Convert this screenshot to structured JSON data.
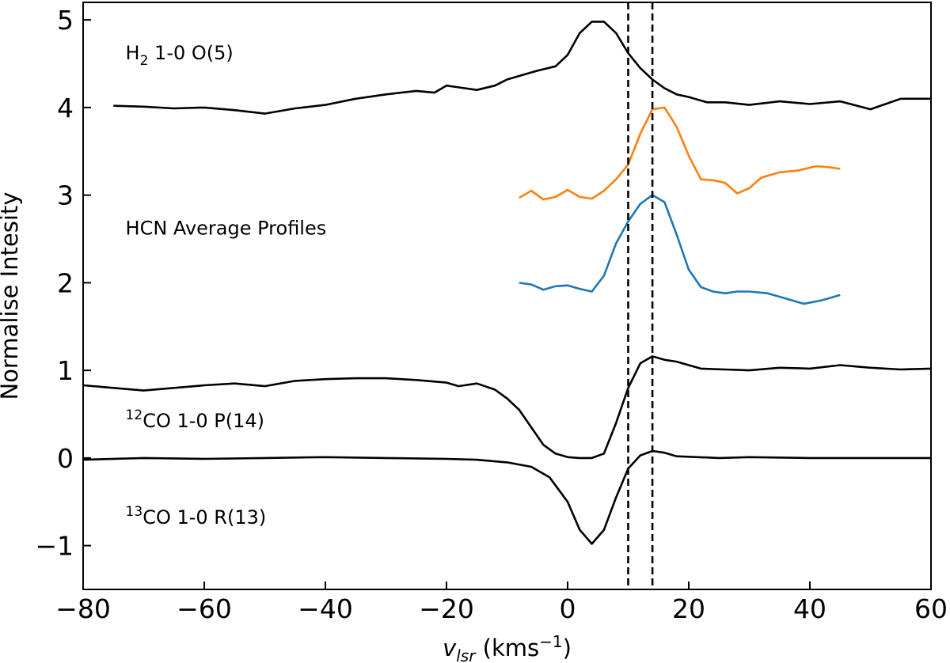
{
  "chart_data": {
    "type": "line",
    "xlabel": {
      "main": "v",
      "sub": "lsr",
      "unit_pre": " (kms",
      "unit_sup": "−1",
      "unit_post": ")"
    },
    "ylabel": "Normalise Intesity",
    "xlim": [
      -80,
      60
    ],
    "ylim": [
      -1.5,
      5.2
    ],
    "xticks": [
      -80,
      -60,
      -40,
      -20,
      0,
      20,
      40,
      60
    ],
    "yticks": [
      -1,
      0,
      1,
      2,
      3,
      4,
      5
    ],
    "xtick_labels": [
      "−80",
      "−60",
      "−40",
      "−20",
      "0",
      "20",
      "40",
      "60"
    ],
    "ytick_labels": [
      "−1",
      "0",
      "1",
      "2",
      "3",
      "4",
      "5"
    ],
    "vlines": [
      10,
      14
    ],
    "annotations": {
      "h2": {
        "main": "H",
        "sub": "2",
        "rest": " 1-0 O(5)",
        "x": -73,
        "y": 4.55
      },
      "hcn": {
        "text": "HCN Average Profiles",
        "x": -73,
        "y": 2.55
      },
      "co12": {
        "sup": "12",
        "rest": "CO 1-0 P(14)",
        "x": -73,
        "y": 0.35
      },
      "co13": {
        "sup": "13",
        "rest": "CO 1-0 R(13)",
        "x": -73,
        "y": -0.75
      }
    },
    "series": [
      {
        "name": "H2 1-0 O(5)",
        "color": "#000000",
        "x": [
          -75,
          -70,
          -65,
          -60,
          -55,
          -50,
          -45,
          -40,
          -35,
          -30,
          -25,
          -22,
          -20,
          -17,
          -15,
          -12,
          -10,
          -7,
          -5,
          -2,
          0,
          2,
          4,
          6,
          8,
          10,
          12,
          14,
          16,
          18,
          20,
          23,
          26,
          30,
          35,
          40,
          45,
          50,
          55,
          60
        ],
        "y": [
          4.02,
          4.01,
          3.99,
          4.0,
          3.97,
          3.93,
          3.99,
          4.03,
          4.1,
          4.15,
          4.19,
          4.17,
          4.25,
          4.22,
          4.2,
          4.25,
          4.32,
          4.38,
          4.42,
          4.47,
          4.6,
          4.85,
          4.98,
          4.98,
          4.85,
          4.62,
          4.45,
          4.32,
          4.22,
          4.15,
          4.12,
          4.06,
          4.06,
          4.03,
          4.07,
          4.04,
          4.07,
          3.98,
          4.1,
          4.1
        ]
      },
      {
        "name": "HCN profile (orange)",
        "color": "#ff7f0e",
        "x": [
          -8,
          -6,
          -4,
          -2,
          0,
          2,
          4,
          6,
          8,
          10,
          12,
          14,
          16,
          18,
          20,
          22,
          24,
          26,
          28,
          30,
          32,
          35,
          38,
          41,
          43,
          45
        ],
        "y": [
          2.97,
          3.05,
          2.95,
          2.98,
          3.06,
          2.98,
          2.96,
          3.05,
          3.18,
          3.35,
          3.7,
          3.98,
          4.0,
          3.78,
          3.45,
          3.18,
          3.17,
          3.14,
          3.02,
          3.08,
          3.2,
          3.26,
          3.28,
          3.33,
          3.32,
          3.3
        ]
      },
      {
        "name": "HCN profile (blue)",
        "color": "#1f77b4",
        "x": [
          -8,
          -6,
          -4,
          -2,
          0,
          2,
          4,
          6,
          8,
          10,
          12,
          14,
          16,
          18,
          20,
          22,
          24,
          26,
          28,
          30,
          33,
          36,
          39,
          42,
          45
        ],
        "y": [
          2.0,
          1.98,
          1.92,
          1.96,
          1.97,
          1.93,
          1.9,
          2.08,
          2.45,
          2.7,
          2.9,
          3.0,
          2.92,
          2.55,
          2.15,
          1.95,
          1.9,
          1.88,
          1.9,
          1.9,
          1.88,
          1.82,
          1.76,
          1.8,
          1.86
        ]
      },
      {
        "name": "12CO 1-0 P(14)",
        "color": "#000000",
        "x": [
          -80,
          -75,
          -70,
          -65,
          -60,
          -55,
          -50,
          -45,
          -40,
          -35,
          -30,
          -25,
          -20,
          -18,
          -15,
          -12,
          -10,
          -8,
          -6,
          -4,
          -2,
          0,
          2,
          4,
          6,
          8,
          10,
          12,
          14,
          16,
          18,
          22,
          26,
          30,
          35,
          40,
          45,
          50,
          55,
          60
        ],
        "y": [
          0.83,
          0.8,
          0.77,
          0.8,
          0.83,
          0.85,
          0.82,
          0.88,
          0.9,
          0.91,
          0.91,
          0.89,
          0.86,
          0.82,
          0.85,
          0.78,
          0.68,
          0.55,
          0.35,
          0.15,
          0.05,
          0.01,
          0.0,
          0.0,
          0.05,
          0.4,
          0.8,
          1.08,
          1.16,
          1.12,
          1.1,
          1.02,
          1.01,
          1.0,
          1.03,
          1.02,
          1.06,
          1.03,
          1.01,
          1.02
        ]
      },
      {
        "name": "13CO 1-0 R(13)",
        "color": "#000000",
        "x": [
          -80,
          -70,
          -60,
          -50,
          -40,
          -30,
          -20,
          -15,
          -10,
          -6,
          -3,
          0,
          2,
          4,
          6,
          8,
          10,
          12,
          14,
          16,
          18,
          25,
          30,
          40,
          50,
          60
        ],
        "y": [
          -0.02,
          0.0,
          -0.01,
          0.0,
          0.01,
          0.0,
          -0.01,
          -0.02,
          -0.05,
          -0.1,
          -0.22,
          -0.5,
          -0.82,
          -0.98,
          -0.82,
          -0.45,
          -0.12,
          0.03,
          0.08,
          0.06,
          0.02,
          0.0,
          0.01,
          0.0,
          0.0,
          0.0
        ]
      }
    ]
  }
}
